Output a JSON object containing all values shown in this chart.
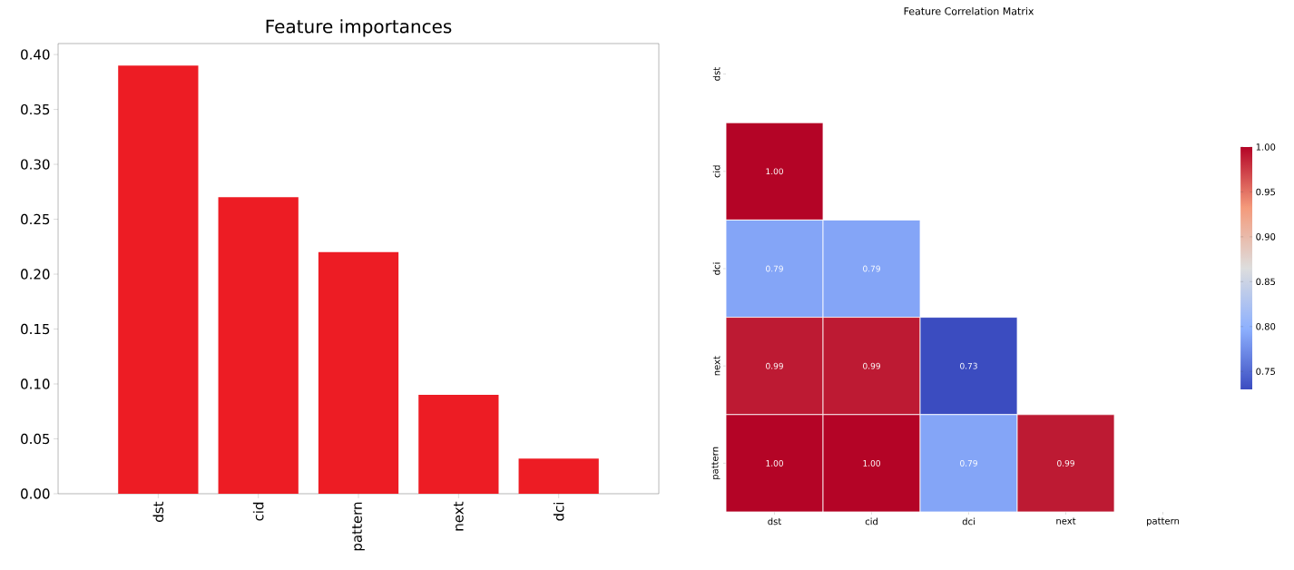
{
  "chart_data": [
    {
      "type": "bar",
      "title": "Feature importances",
      "categories": [
        "dst",
        "cid",
        "pattern",
        "next",
        "dci"
      ],
      "values": [
        0.39,
        0.27,
        0.22,
        0.09,
        0.032
      ],
      "color": "#ed1c24",
      "ylim": [
        0,
        0.41
      ],
      "yticks": [
        {
          "value": 0,
          "label": "0.00"
        },
        {
          "value": 0.05,
          "label": "0.05"
        },
        {
          "value": 0.1,
          "label": "0.10"
        },
        {
          "value": 0.15,
          "label": "0.15"
        },
        {
          "value": 0.2,
          "label": "0.20"
        },
        {
          "value": 0.25,
          "label": "0.25"
        },
        {
          "value": 0.3,
          "label": "0.30"
        },
        {
          "value": 0.35,
          "label": "0.35"
        },
        {
          "value": 0.4,
          "label": "0.40"
        }
      ]
    },
    {
      "type": "heatmap",
      "title": "Feature Correlation Matrix",
      "categories": [
        "dst",
        "cid",
        "dci",
        "next",
        "pattern"
      ],
      "y_categories": [
        "dst",
        "cid",
        "dci",
        "next",
        "pattern"
      ],
      "cells": [
        [
          null,
          null,
          null,
          null,
          null
        ],
        [
          1.0,
          null,
          null,
          null,
          null
        ],
        [
          0.79,
          0.79,
          null,
          null,
          null
        ],
        [
          0.99,
          0.99,
          0.73,
          null,
          null
        ],
        [
          1.0,
          1.0,
          0.79,
          0.99,
          null
        ]
      ],
      "cell_labels": [
        [
          null,
          null,
          null,
          null,
          null
        ],
        [
          "1.00",
          null,
          null,
          null,
          null
        ],
        [
          "0.79",
          "0.79",
          null,
          null,
          null
        ],
        [
          "0.99",
          "0.99",
          "0.73",
          null,
          null
        ],
        [
          "1.00",
          "1.00",
          "0.79",
          "0.99",
          null
        ]
      ],
      "clim": [
        0.73,
        1.0
      ],
      "cticks": [
        {
          "value": 0.75,
          "label": "0.75"
        },
        {
          "value": 0.8,
          "label": "0.80"
        },
        {
          "value": 0.85,
          "label": "0.85"
        },
        {
          "value": 0.9,
          "label": "0.90"
        },
        {
          "value": 0.95,
          "label": "0.95"
        },
        {
          "value": 1.0,
          "label": "1.00"
        }
      ]
    }
  ]
}
